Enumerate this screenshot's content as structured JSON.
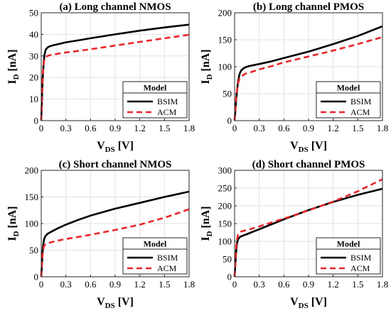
{
  "chart_data": [
    {
      "type": "line",
      "title": "(a) Long channel NMOS",
      "xlabel_main": "V",
      "xlabel_sub": "DS",
      "xlabel_unit": "[V]",
      "ylabel_main": "I",
      "ylabel_sub": "D",
      "ylabel_unit": "[nA]",
      "xlim": [
        0,
        1.8
      ],
      "ylim": [
        0,
        50
      ],
      "xticks": [
        "0",
        "0.3",
        "0.6",
        "0.9",
        "1.2",
        "1.5",
        "1.8"
      ],
      "yticks": [
        "0",
        "10",
        "20",
        "30",
        "40",
        "50"
      ],
      "grid": true,
      "legend_title": "Model",
      "legend_position": "bottom-right",
      "series": [
        {
          "name": "BSIM",
          "style": "solid",
          "color": "#000000",
          "x": [
            0,
            0.01,
            0.02,
            0.03,
            0.04,
            0.05,
            0.06,
            0.08,
            0.1,
            0.15,
            0.2,
            0.3,
            0.45,
            0.6,
            0.9,
            1.2,
            1.5,
            1.8
          ],
          "y": [
            0,
            12,
            21,
            27,
            30.5,
            32.3,
            33.2,
            34,
            34.4,
            35,
            35.4,
            36.3,
            37.2,
            38.2,
            40,
            41.7,
            43.2,
            44.5
          ]
        },
        {
          "name": "ACM",
          "style": "dashed",
          "color": "#e8262a",
          "x": [
            0,
            0.01,
            0.02,
            0.03,
            0.04,
            0.05,
            0.07,
            0.1,
            0.15,
            0.2,
            0.3,
            0.45,
            0.6,
            0.9,
            1.2,
            1.5,
            1.8
          ],
          "y": [
            0,
            13,
            22,
            26.5,
            28.5,
            29.3,
            29.9,
            30.3,
            30.7,
            31,
            31.6,
            32.3,
            33.1,
            34.8,
            36.5,
            38.2,
            39.8
          ]
        }
      ]
    },
    {
      "type": "line",
      "title": "(b) Long channel PMOS",
      "xlabel_main": "V",
      "xlabel_sub": "DS",
      "xlabel_unit": "[V]",
      "ylabel_main": "I",
      "ylabel_sub": "D",
      "ylabel_unit": "[nA]",
      "xlim": [
        0,
        1.8
      ],
      "ylim": [
        0,
        200
      ],
      "xticks": [
        "0",
        "0.3",
        "0.6",
        "0.9",
        "1.2",
        "1.5",
        "1.8"
      ],
      "yticks": [
        "0",
        "50",
        "100",
        "150",
        "200"
      ],
      "grid": true,
      "legend_title": "Model",
      "legend_position": "bottom-right",
      "series": [
        {
          "name": "BSIM",
          "style": "solid",
          "color": "#000000",
          "x": [
            0,
            0.02,
            0.04,
            0.06,
            0.08,
            0.1,
            0.12,
            0.15,
            0.2,
            0.3,
            0.45,
            0.6,
            0.9,
            1.2,
            1.5,
            1.8
          ],
          "y": [
            0,
            40,
            70,
            86,
            93,
            96,
            98,
            100,
            102,
            105,
            110,
            116,
            128,
            142,
            157,
            175
          ]
        },
        {
          "name": "ACM",
          "style": "dashed",
          "color": "#e8262a",
          "x": [
            0,
            0.02,
            0.04,
            0.06,
            0.08,
            0.1,
            0.12,
            0.15,
            0.2,
            0.3,
            0.45,
            0.6,
            0.9,
            1.2,
            1.5,
            1.8
          ],
          "y": [
            0,
            45,
            68,
            78,
            82,
            84,
            86,
            88,
            90,
            95,
            101,
            108,
            119,
            130,
            142,
            155
          ]
        }
      ]
    },
    {
      "type": "line",
      "title": "(c) Short channel NMOS",
      "xlabel_main": "V",
      "xlabel_sub": "DS",
      "xlabel_unit": "[V]",
      "ylabel_main": "I",
      "ylabel_sub": "D",
      "ylabel_unit": "[nA]",
      "xlim": [
        0,
        1.8
      ],
      "ylim": [
        0,
        200
      ],
      "xticks": [
        "0",
        "0.3",
        "0.6",
        "0.9",
        "1.2",
        "1.5",
        "1.8"
      ],
      "yticks": [
        "0",
        "50",
        "100",
        "150",
        "200"
      ],
      "grid": true,
      "legend_title": "Model",
      "legend_position": "bottom-right",
      "series": [
        {
          "name": "BSIM",
          "style": "solid",
          "color": "#000000",
          "x": [
            0,
            0.01,
            0.02,
            0.03,
            0.04,
            0.05,
            0.07,
            0.1,
            0.15,
            0.2,
            0.3,
            0.45,
            0.6,
            0.9,
            1.2,
            1.5,
            1.8
          ],
          "y": [
            0,
            30,
            55,
            67,
            73,
            76,
            80,
            83,
            87,
            91,
            98,
            107,
            115,
            128,
            139,
            150,
            160
          ]
        },
        {
          "name": "ACM",
          "style": "dashed",
          "color": "#e8262a",
          "x": [
            0,
            0.01,
            0.02,
            0.03,
            0.04,
            0.05,
            0.07,
            0.1,
            0.15,
            0.2,
            0.3,
            0.45,
            0.6,
            0.9,
            1.2,
            1.5,
            1.8
          ],
          "y": [
            0,
            28,
            48,
            56,
            59,
            61,
            63,
            64,
            66,
            68,
            71,
            75,
            79,
            88,
            98,
            111,
            127
          ]
        }
      ]
    },
    {
      "type": "line",
      "title": "(d) Short channel PMOS",
      "xlabel_main": "V",
      "xlabel_sub": "DS",
      "xlabel_unit": "[V]",
      "ylabel_main": "I",
      "ylabel_sub": "D",
      "ylabel_unit": "[nA]",
      "xlim": [
        0,
        1.8
      ],
      "ylim": [
        0,
        300
      ],
      "xticks": [
        "0",
        "0.3",
        "0.6",
        "0.9",
        "1.2",
        "1.5",
        "1.8"
      ],
      "yticks": [
        "0",
        "50",
        "100",
        "150",
        "200",
        "250",
        "300"
      ],
      "grid": true,
      "legend_title": "Model",
      "legend_position": "bottom-right",
      "series": [
        {
          "name": "BSIM",
          "style": "solid",
          "color": "#000000",
          "x": [
            0,
            0.01,
            0.02,
            0.03,
            0.04,
            0.05,
            0.07,
            0.1,
            0.15,
            0.2,
            0.3,
            0.45,
            0.6,
            0.9,
            1.2,
            1.5,
            1.8
          ],
          "y": [
            0,
            40,
            75,
            95,
            104,
            109,
            113,
            116,
            120,
            125,
            134,
            148,
            162,
            188,
            211,
            231,
            248
          ]
        },
        {
          "name": "ACM",
          "style": "dashed",
          "color": "#e8262a",
          "x": [
            0,
            0.01,
            0.02,
            0.03,
            0.04,
            0.05,
            0.07,
            0.1,
            0.15,
            0.2,
            0.3,
            0.45,
            0.6,
            0.9,
            1.2,
            1.5,
            1.8
          ],
          "y": [
            0,
            45,
            85,
            107,
            117,
            122,
            127,
            129,
            132,
            135,
            142,
            153,
            164,
            187,
            212,
            241,
            275
          ]
        }
      ]
    }
  ]
}
